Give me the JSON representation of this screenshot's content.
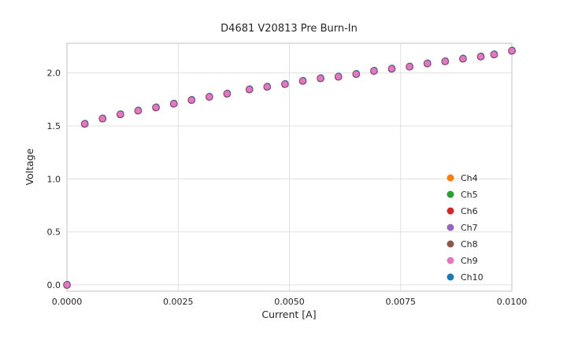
{
  "figure": {
    "title": "D4681 V20813 Pre Burn-In",
    "xlabel": "Current [A]",
    "ylabel": "Voltage"
  },
  "chart_data": {
    "type": "scatter",
    "title": "D4681 V20813 Pre Burn-In",
    "xlabel": "Current [A]",
    "ylabel": "Voltage",
    "xlim": [
      0.0,
      0.01
    ],
    "ylim": [
      -0.06,
      2.28
    ],
    "xticks": [
      0.0,
      0.0025,
      0.005,
      0.0075,
      0.01
    ],
    "xtick_labels": [
      "0.0000",
      "0.0025",
      "0.0050",
      "0.0075",
      "0.0100"
    ],
    "yticks": [
      0.0,
      0.5,
      1.0,
      1.5,
      2.0
    ],
    "ytick_labels": [
      "0.0",
      "0.5",
      "1.0",
      "1.5",
      "2.0"
    ],
    "grid": true,
    "legend_position": "lower-right-inside",
    "note": "All seven channels overlap within marker size; Ch9 (pink) is drawn on top.",
    "x": [
      0.0,
      0.0004,
      0.0008,
      0.0012,
      0.0016,
      0.002,
      0.0024,
      0.0028,
      0.0032,
      0.0036,
      0.0041,
      0.0045,
      0.0049,
      0.0053,
      0.0057,
      0.0061,
      0.0065,
      0.0069,
      0.0073,
      0.0077,
      0.0081,
      0.0085,
      0.0089,
      0.0093,
      0.0096,
      0.01
    ],
    "series": [
      {
        "name": "Ch4",
        "color": "#ff7f0e",
        "values": [
          0.0,
          1.52,
          1.57,
          1.61,
          1.645,
          1.675,
          1.71,
          1.745,
          1.775,
          1.805,
          1.845,
          1.87,
          1.895,
          1.925,
          1.95,
          1.965,
          1.99,
          2.02,
          2.04,
          2.06,
          2.09,
          2.11,
          2.135,
          2.155,
          2.175,
          2.21
        ]
      },
      {
        "name": "Ch5",
        "color": "#2ca02c",
        "values": [
          0.0,
          1.52,
          1.57,
          1.61,
          1.645,
          1.675,
          1.71,
          1.745,
          1.775,
          1.805,
          1.845,
          1.87,
          1.895,
          1.925,
          1.95,
          1.965,
          1.99,
          2.02,
          2.04,
          2.06,
          2.09,
          2.11,
          2.135,
          2.155,
          2.175,
          2.21
        ]
      },
      {
        "name": "Ch6",
        "color": "#d62728",
        "values": [
          0.0,
          1.52,
          1.57,
          1.61,
          1.645,
          1.675,
          1.71,
          1.745,
          1.775,
          1.805,
          1.845,
          1.87,
          1.895,
          1.925,
          1.95,
          1.965,
          1.99,
          2.02,
          2.04,
          2.06,
          2.09,
          2.11,
          2.135,
          2.155,
          2.175,
          2.21
        ]
      },
      {
        "name": "Ch7",
        "color": "#9467bd",
        "values": [
          0.0,
          1.52,
          1.57,
          1.61,
          1.645,
          1.675,
          1.71,
          1.745,
          1.775,
          1.805,
          1.845,
          1.87,
          1.895,
          1.925,
          1.95,
          1.965,
          1.99,
          2.02,
          2.04,
          2.06,
          2.09,
          2.11,
          2.135,
          2.155,
          2.175,
          2.21
        ]
      },
      {
        "name": "Ch8",
        "color": "#8c564b",
        "values": [
          0.0,
          1.52,
          1.57,
          1.61,
          1.645,
          1.675,
          1.71,
          1.745,
          1.775,
          1.805,
          1.845,
          1.87,
          1.895,
          1.925,
          1.95,
          1.965,
          1.99,
          2.02,
          2.04,
          2.06,
          2.09,
          2.11,
          2.135,
          2.155,
          2.175,
          2.21
        ]
      },
      {
        "name": "Ch9",
        "color": "#e377c2",
        "values": [
          0.0,
          1.52,
          1.57,
          1.61,
          1.645,
          1.675,
          1.71,
          1.745,
          1.775,
          1.805,
          1.845,
          1.87,
          1.895,
          1.925,
          1.95,
          1.965,
          1.99,
          2.02,
          2.04,
          2.06,
          2.09,
          2.11,
          2.135,
          2.155,
          2.175,
          2.21
        ]
      },
      {
        "name": "Ch10",
        "color": "#1f77b4",
        "values": [
          0.0,
          1.52,
          1.57,
          1.61,
          1.645,
          1.675,
          1.71,
          1.745,
          1.775,
          1.805,
          1.845,
          1.87,
          1.895,
          1.925,
          1.95,
          1.965,
          1.99,
          2.02,
          2.04,
          2.06,
          2.09,
          2.11,
          2.135,
          2.155,
          2.175,
          2.21
        ]
      }
    ],
    "draw_order": [
      "Ch4",
      "Ch5",
      "Ch6",
      "Ch7",
      "Ch8",
      "Ch10",
      "Ch9"
    ],
    "style": {
      "grid_color": "#e0e0e0",
      "spine_color": "#cccccc",
      "marker_radius": 4.2,
      "top_marker_edge": "rgba(90,65,110,0.65)"
    }
  }
}
